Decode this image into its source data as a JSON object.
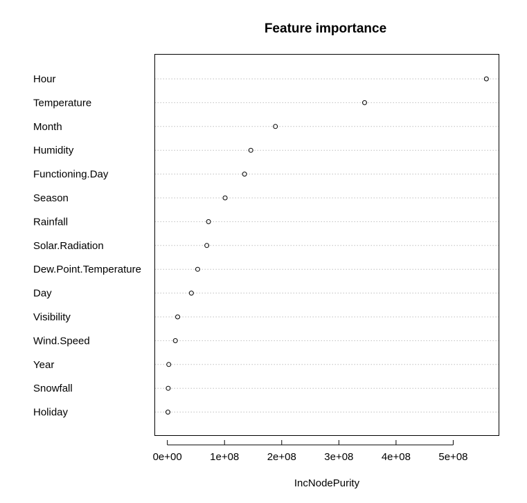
{
  "chart_data": {
    "type": "scatter",
    "title": "Feature importance",
    "xlabel": "IncNodePurity",
    "ylabel": "",
    "xlim": [
      -22000000,
      580000000
    ],
    "x_ticks": [
      0,
      100000000,
      200000000,
      300000000,
      400000000,
      500000000
    ],
    "x_tick_labels": [
      "0e+00",
      "1e+08",
      "2e+08",
      "3e+08",
      "4e+08",
      "5e+08"
    ],
    "grid": "horizontal dotted",
    "categories": [
      "Hour",
      "Temperature",
      "Month",
      "Humidity",
      "Functioning.Day",
      "Season",
      "Rainfall",
      "Solar.Radiation",
      "Dew.Point.Temperature",
      "Day",
      "Visibility",
      "Wind.Speed",
      "Year",
      "Snowfall",
      "Holiday"
    ],
    "values": [
      558000000,
      345000000,
      189000000,
      146000000,
      135000000,
      101000000,
      72000000,
      69000000,
      53000000,
      42000000,
      18000000,
      14000000,
      2500000,
      1500000,
      1000000
    ]
  }
}
